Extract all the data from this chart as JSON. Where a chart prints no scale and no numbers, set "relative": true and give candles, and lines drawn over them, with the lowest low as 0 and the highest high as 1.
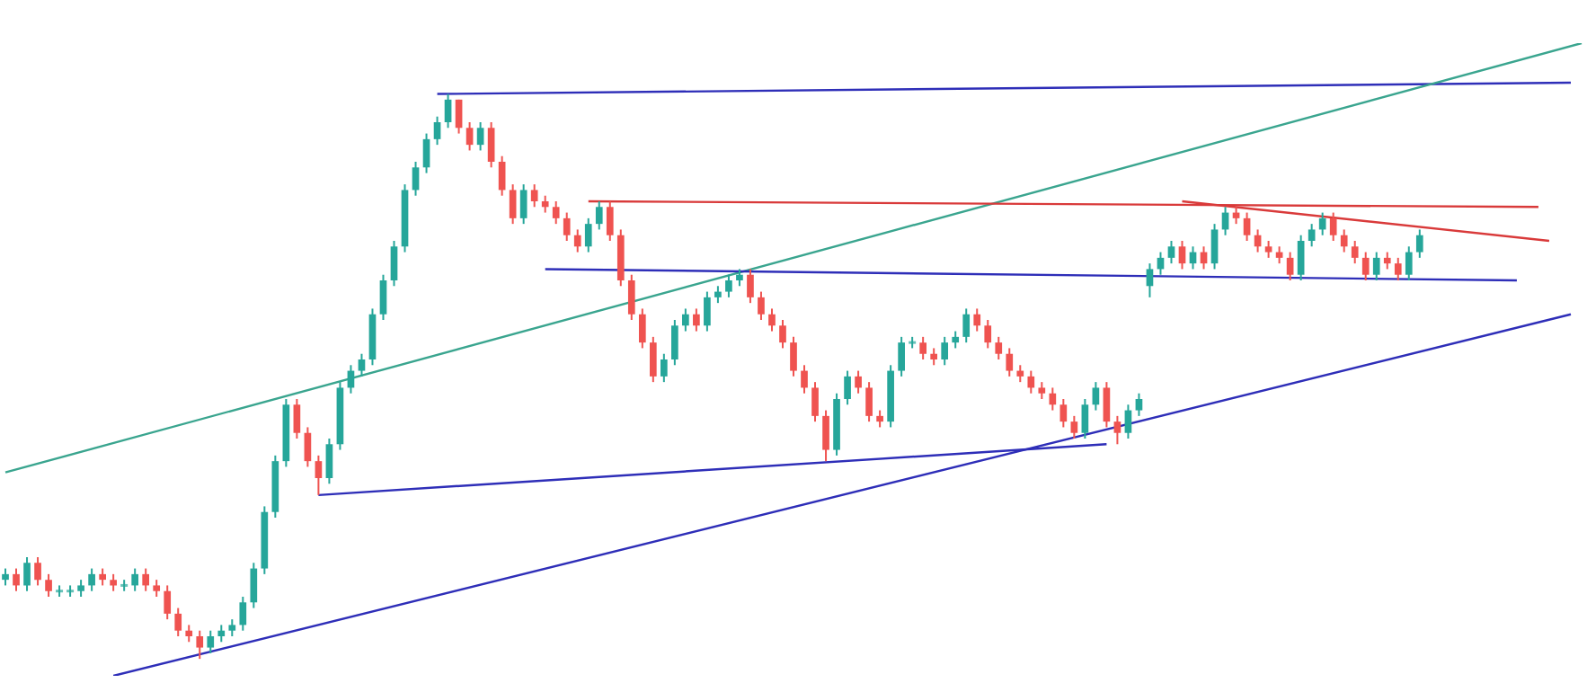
{
  "chart_data": {
    "type": "candlestick",
    "relative": true,
    "categories": [
      null,
      null,
      null,
      null,
      null,
      null,
      null,
      null,
      null,
      null,
      null,
      null,
      null,
      null,
      null,
      null,
      null,
      null,
      null,
      null,
      null,
      null,
      null,
      null,
      null,
      null,
      null,
      null,
      null,
      null,
      null,
      null,
      null,
      null,
      null,
      null,
      null,
      null,
      null,
      null,
      null,
      null,
      null,
      null,
      null,
      null,
      null,
      null,
      null,
      null,
      null,
      null,
      null,
      null,
      null,
      null,
      null,
      null,
      null,
      null,
      null,
      null,
      null,
      null,
      null,
      null,
      null,
      null,
      null,
      null,
      null,
      null,
      null,
      null,
      null,
      null,
      null,
      null,
      null,
      null,
      null,
      null,
      null,
      null,
      null,
      null,
      null,
      null,
      null,
      null,
      null,
      null,
      null,
      null,
      null,
      null,
      null,
      null,
      null,
      null,
      null,
      null,
      null,
      null,
      null,
      null,
      null,
      null,
      null,
      null,
      null,
      null,
      null,
      null,
      null,
      null,
      null,
      null,
      null,
      null,
      null,
      null,
      null,
      null,
      null,
      null,
      null,
      null,
      null,
      null,
      null,
      null,
      null,
      null,
      null,
      null,
      null,
      null,
      null,
      null,
      null,
      null,
      null,
      null,
      null,
      null,
      null
    ],
    "ohlc": [
      [
        0.14,
        0.16,
        0.13,
        0.15
      ],
      [
        0.15,
        0.16,
        0.12,
        0.13
      ],
      [
        0.13,
        0.18,
        0.12,
        0.17
      ],
      [
        0.17,
        0.18,
        0.13,
        0.14
      ],
      [
        0.14,
        0.15,
        0.11,
        0.12
      ],
      [
        0.12,
        0.13,
        0.11,
        0.12
      ],
      [
        0.12,
        0.13,
        0.11,
        0.12
      ],
      [
        0.12,
        0.14,
        0.11,
        0.13
      ],
      [
        0.13,
        0.16,
        0.12,
        0.15
      ],
      [
        0.15,
        0.16,
        0.13,
        0.14
      ],
      [
        0.14,
        0.15,
        0.12,
        0.13
      ],
      [
        0.13,
        0.14,
        0.12,
        0.13
      ],
      [
        0.13,
        0.16,
        0.12,
        0.15
      ],
      [
        0.15,
        0.16,
        0.12,
        0.13
      ],
      [
        0.13,
        0.14,
        0.11,
        0.12
      ],
      [
        0.12,
        0.13,
        0.07,
        0.08
      ],
      [
        0.08,
        0.09,
        0.04,
        0.05
      ],
      [
        0.05,
        0.06,
        0.03,
        0.04
      ],
      [
        0.04,
        0.05,
        0,
        0.02
      ],
      [
        0.02,
        0.05,
        0.01,
        0.04
      ],
      [
        0.04,
        0.06,
        0.03,
        0.05
      ],
      [
        0.05,
        0.07,
        0.04,
        0.06
      ],
      [
        0.06,
        0.11,
        0.05,
        0.1
      ],
      [
        0.1,
        0.17,
        0.09,
        0.16
      ],
      [
        0.16,
        0.27,
        0.15,
        0.26
      ],
      [
        0.26,
        0.36,
        0.25,
        0.35
      ],
      [
        0.35,
        0.46,
        0.34,
        0.45
      ],
      [
        0.45,
        0.46,
        0.39,
        0.4
      ],
      [
        0.4,
        0.41,
        0.34,
        0.35
      ],
      [
        0.35,
        0.36,
        0.29,
        0.32
      ],
      [
        0.32,
        0.39,
        0.31,
        0.38
      ],
      [
        0.38,
        0.49,
        0.37,
        0.48
      ],
      [
        0.48,
        0.52,
        0.47,
        0.51
      ],
      [
        0.51,
        0.54,
        0.5,
        0.53
      ],
      [
        0.53,
        0.62,
        0.52,
        0.61
      ],
      [
        0.61,
        0.68,
        0.6,
        0.67
      ],
      [
        0.67,
        0.74,
        0.66,
        0.73
      ],
      [
        0.73,
        0.84,
        0.72,
        0.83
      ],
      [
        0.83,
        0.88,
        0.82,
        0.87
      ],
      [
        0.87,
        0.93,
        0.86,
        0.92
      ],
      [
        0.92,
        0.96,
        0.91,
        0.95
      ],
      [
        0.95,
        1,
        0.94,
        0.99
      ],
      [
        0.99,
        0.99,
        0.93,
        0.94
      ],
      [
        0.94,
        0.95,
        0.9,
        0.91
      ],
      [
        0.91,
        0.95,
        0.9,
        0.94
      ],
      [
        0.94,
        0.95,
        0.87,
        0.88
      ],
      [
        0.88,
        0.89,
        0.82,
        0.83
      ],
      [
        0.83,
        0.84,
        0.77,
        0.78
      ],
      [
        0.78,
        0.84,
        0.77,
        0.83
      ],
      [
        0.83,
        0.84,
        0.8,
        0.81
      ],
      [
        0.81,
        0.82,
        0.79,
        0.8
      ],
      [
        0.8,
        0.81,
        0.77,
        0.78
      ],
      [
        0.78,
        0.79,
        0.74,
        0.75
      ],
      [
        0.75,
        0.76,
        0.72,
        0.73
      ],
      [
        0.73,
        0.78,
        0.72,
        0.77
      ],
      [
        0.77,
        0.81,
        0.76,
        0.8
      ],
      [
        0.8,
        0.81,
        0.74,
        0.75
      ],
      [
        0.75,
        0.76,
        0.66,
        0.67
      ],
      [
        0.67,
        0.68,
        0.6,
        0.61
      ],
      [
        0.61,
        0.62,
        0.55,
        0.56
      ],
      [
        0.56,
        0.57,
        0.49,
        0.5
      ],
      [
        0.5,
        0.54,
        0.49,
        0.53
      ],
      [
        0.53,
        0.6,
        0.52,
        0.59
      ],
      [
        0.59,
        0.62,
        0.58,
        0.61
      ],
      [
        0.61,
        0.62,
        0.58,
        0.59
      ],
      [
        0.59,
        0.65,
        0.58,
        0.64
      ],
      [
        0.64,
        0.66,
        0.63,
        0.65
      ],
      [
        0.65,
        0.68,
        0.64,
        0.67
      ],
      [
        0.67,
        0.69,
        0.66,
        0.68
      ],
      [
        0.68,
        0.69,
        0.63,
        0.64
      ],
      [
        0.64,
        0.65,
        0.6,
        0.61
      ],
      [
        0.61,
        0.62,
        0.58,
        0.59
      ],
      [
        0.59,
        0.6,
        0.55,
        0.56
      ],
      [
        0.56,
        0.57,
        0.5,
        0.51
      ],
      [
        0.51,
        0.52,
        0.47,
        0.48
      ],
      [
        0.48,
        0.49,
        0.42,
        0.43
      ],
      [
        0.43,
        0.44,
        0.35,
        0.37
      ],
      [
        0.37,
        0.47,
        0.36,
        0.46
      ],
      [
        0.46,
        0.51,
        0.45,
        0.5
      ],
      [
        0.5,
        0.51,
        0.47,
        0.48
      ],
      [
        0.48,
        0.49,
        0.42,
        0.43
      ],
      [
        0.43,
        0.44,
        0.41,
        0.42
      ],
      [
        0.42,
        0.52,
        0.41,
        0.51
      ],
      [
        0.51,
        0.57,
        0.5,
        0.56
      ],
      [
        0.56,
        0.57,
        0.55,
        0.56
      ],
      [
        0.56,
        0.57,
        0.53,
        0.54
      ],
      [
        0.54,
        0.55,
        0.52,
        0.53
      ],
      [
        0.53,
        0.57,
        0.52,
        0.56
      ],
      [
        0.56,
        0.58,
        0.55,
        0.57
      ],
      [
        0.57,
        0.62,
        0.56,
        0.61
      ],
      [
        0.61,
        0.62,
        0.58,
        0.59
      ],
      [
        0.59,
        0.6,
        0.55,
        0.56
      ],
      [
        0.56,
        0.57,
        0.53,
        0.54
      ],
      [
        0.54,
        0.55,
        0.5,
        0.51
      ],
      [
        0.51,
        0.52,
        0.49,
        0.5
      ],
      [
        0.5,
        0.51,
        0.47,
        0.48
      ],
      [
        0.48,
        0.49,
        0.46,
        0.47
      ],
      [
        0.47,
        0.48,
        0.44,
        0.45
      ],
      [
        0.45,
        0.46,
        0.41,
        0.42
      ],
      [
        0.42,
        0.43,
        0.39,
        0.4
      ],
      [
        0.4,
        0.46,
        0.39,
        0.45
      ],
      [
        0.45,
        0.49,
        0.44,
        0.48
      ],
      [
        0.48,
        0.49,
        0.41,
        0.42
      ],
      [
        0.42,
        0.43,
        0.38,
        0.4
      ],
      [
        0.4,
        0.45,
        0.39,
        0.44
      ],
      [
        0.44,
        0.47,
        0.43,
        0.46
      ],
      [
        0.66,
        0.7,
        0.64,
        0.69
      ],
      [
        0.69,
        0.72,
        0.68,
        0.71
      ],
      [
        0.71,
        0.74,
        0.7,
        0.73
      ],
      [
        0.73,
        0.74,
        0.69,
        0.7
      ],
      [
        0.7,
        0.73,
        0.69,
        0.72
      ],
      [
        0.72,
        0.73,
        0.69,
        0.7
      ],
      [
        0.7,
        0.77,
        0.69,
        0.76
      ],
      [
        0.76,
        0.8,
        0.75,
        0.79
      ],
      [
        0.79,
        0.8,
        0.77,
        0.78
      ],
      [
        0.78,
        0.79,
        0.74,
        0.75
      ],
      [
        0.75,
        0.76,
        0.72,
        0.73
      ],
      [
        0.73,
        0.74,
        0.71,
        0.72
      ],
      [
        0.72,
        0.73,
        0.7,
        0.71
      ],
      [
        0.71,
        0.72,
        0.67,
        0.68
      ],
      [
        0.68,
        0.75,
        0.67,
        0.74
      ],
      [
        0.74,
        0.77,
        0.73,
        0.76
      ],
      [
        0.76,
        0.79,
        0.75,
        0.78
      ],
      [
        0.78,
        0.79,
        0.74,
        0.75
      ],
      [
        0.75,
        0.76,
        0.72,
        0.73
      ],
      [
        0.73,
        0.74,
        0.7,
        0.71
      ],
      [
        0.71,
        0.72,
        0.67,
        0.68
      ],
      [
        0.68,
        0.72,
        0.67,
        0.71
      ],
      [
        0.71,
        0.72,
        0.69,
        0.7
      ],
      [
        0.7,
        0.71,
        0.67,
        0.68
      ],
      [
        0.68,
        0.73,
        0.67,
        0.72
      ],
      [
        0.72,
        0.76,
        0.71,
        0.75
      ],
      null,
      null,
      null,
      null,
      null,
      null,
      null,
      null,
      null,
      null,
      null,
      null,
      null,
      null,
      null
    ],
    "series": [
      {
        "type": "line",
        "color": "#2e2eb8",
        "values": [
          null,
          null,
          null,
          null,
          null,
          null,
          null,
          null,
          null,
          null,
          null,
          null,
          null,
          null,
          null,
          null,
          null,
          null,
          null,
          null,
          null,
          null,
          null,
          null,
          null,
          null,
          null,
          null,
          null,
          null,
          null,
          null,
          null,
          null,
          null,
          null,
          null,
          null,
          null,
          null,
          1.0,
          null,
          null,
          null,
          null,
          null,
          null,
          null,
          null,
          null,
          null,
          null,
          null,
          null,
          null,
          null,
          null,
          null,
          null,
          null,
          null,
          null,
          null,
          null,
          null,
          null,
          null,
          null,
          null,
          null,
          null,
          null,
          null,
          null,
          null,
          null,
          null,
          null,
          null,
          null,
          null,
          null,
          null,
          null,
          null,
          null,
          null,
          null,
          null,
          null,
          null,
          null,
          null,
          null,
          null,
          null,
          null,
          null,
          null,
          null,
          null,
          null,
          null,
          null,
          null,
          null,
          null,
          null,
          null,
          null,
          null,
          null,
          null,
          null,
          null,
          null,
          null,
          null,
          null,
          null,
          null,
          null,
          null,
          null,
          null,
          null,
          null,
          null,
          null,
          null,
          null,
          null,
          null,
          null,
          null,
          null,
          null,
          null,
          null,
          null,
          null,
          null,
          null,
          null,
          null,
          1.02,
          null
        ]
      },
      {
        "type": "line",
        "color": "#3aa58f",
        "values": [
          0.33,
          null,
          null,
          null,
          null,
          null,
          null,
          null,
          null,
          null,
          null,
          null,
          null,
          null,
          null,
          null,
          null,
          null,
          null,
          null,
          null,
          null,
          null,
          null,
          null,
          null,
          null,
          null,
          null,
          null,
          null,
          null,
          null,
          null,
          null,
          null,
          null,
          null,
          null,
          null,
          null,
          null,
          null,
          null,
          null,
          null,
          null,
          null,
          null,
          null,
          null,
          null,
          null,
          null,
          null,
          null,
          null,
          null,
          null,
          null,
          null,
          null,
          null,
          null,
          null,
          null,
          null,
          null,
          null,
          null,
          null,
          null,
          null,
          null,
          null,
          null,
          null,
          null,
          null,
          null,
          null,
          null,
          null,
          null,
          null,
          null,
          null,
          null,
          null,
          null,
          null,
          null,
          null,
          null,
          null,
          null,
          null,
          null,
          null,
          null,
          null,
          null,
          null,
          null,
          null,
          null,
          null,
          null,
          null,
          null,
          null,
          null,
          null,
          null,
          null,
          null,
          null,
          null,
          null,
          null,
          null,
          null,
          null,
          null,
          null,
          null,
          null,
          null,
          null,
          null,
          null,
          null,
          null,
          null,
          null,
          null,
          null,
          null,
          null,
          null,
          null,
          null,
          null,
          null,
          null,
          null,
          1.09
        ]
      },
      {
        "type": "line",
        "color": "#d93a3a",
        "values": [
          null,
          null,
          null,
          null,
          null,
          null,
          null,
          null,
          null,
          null,
          null,
          null,
          null,
          null,
          null,
          null,
          null,
          null,
          null,
          null,
          null,
          null,
          null,
          null,
          null,
          null,
          null,
          null,
          null,
          null,
          null,
          null,
          null,
          null,
          null,
          null,
          null,
          null,
          null,
          null,
          null,
          null,
          null,
          null,
          null,
          null,
          null,
          null,
          null,
          null,
          null,
          null,
          null,
          null,
          0.81,
          null,
          null,
          null,
          null,
          null,
          null,
          null,
          null,
          null,
          null,
          null,
          null,
          null,
          null,
          null,
          null,
          null,
          null,
          null,
          null,
          null,
          null,
          null,
          null,
          null,
          null,
          null,
          null,
          null,
          null,
          null,
          null,
          null,
          null,
          null,
          null,
          null,
          null,
          null,
          null,
          null,
          null,
          null,
          null,
          null,
          null,
          null,
          null,
          null,
          null,
          null,
          null,
          null,
          null,
          null,
          null,
          null,
          null,
          null,
          null,
          null,
          null,
          null,
          null,
          null,
          null,
          null,
          null,
          null,
          null,
          null,
          null,
          null,
          null,
          null,
          null,
          null,
          null,
          null,
          null,
          null,
          null,
          null,
          null,
          null,
          null,
          null,
          0.8,
          null,
          null,
          null,
          null
        ]
      },
      {
        "type": "line",
        "color": "#2e2eb8",
        "values": [
          null,
          null,
          null,
          null,
          null,
          null,
          null,
          null,
          null,
          null,
          null,
          null,
          null,
          null,
          null,
          null,
          null,
          null,
          null,
          null,
          null,
          null,
          null,
          null,
          null,
          null,
          null,
          null,
          null,
          null,
          null,
          null,
          null,
          null,
          null,
          null,
          null,
          null,
          null,
          null,
          null,
          null,
          null,
          null,
          null,
          null,
          null,
          null,
          null,
          null,
          0.69,
          null,
          null,
          null,
          null,
          null,
          null,
          null,
          null,
          null,
          null,
          null,
          null,
          null,
          null,
          null,
          null,
          null,
          null,
          null,
          null,
          null,
          null,
          null,
          null,
          null,
          null,
          null,
          null,
          null,
          null,
          null,
          null,
          null,
          null,
          null,
          null,
          null,
          null,
          null,
          null,
          null,
          null,
          null,
          null,
          null,
          null,
          null,
          null,
          null,
          null,
          null,
          null,
          null,
          null,
          null,
          null,
          null,
          null,
          null,
          null,
          null,
          null,
          null,
          null,
          null,
          null,
          null,
          null,
          null,
          null,
          null,
          null,
          null,
          null,
          null,
          null,
          null,
          null,
          null,
          null,
          null,
          null,
          null,
          null,
          null,
          null,
          null,
          null,
          null,
          0.67,
          null,
          null,
          null,
          null,
          null,
          null
        ]
      },
      {
        "type": "line",
        "color": "#d93a3a",
        "values": [
          null,
          null,
          null,
          null,
          null,
          null,
          null,
          null,
          null,
          null,
          null,
          null,
          null,
          null,
          null,
          null,
          null,
          null,
          null,
          null,
          null,
          null,
          null,
          null,
          null,
          null,
          null,
          null,
          null,
          null,
          null,
          null,
          null,
          null,
          null,
          null,
          null,
          null,
          null,
          null,
          null,
          null,
          null,
          null,
          null,
          null,
          null,
          null,
          null,
          null,
          null,
          null,
          null,
          null,
          null,
          null,
          null,
          null,
          null,
          null,
          null,
          null,
          null,
          null,
          null,
          null,
          null,
          null,
          null,
          null,
          null,
          null,
          null,
          null,
          null,
          null,
          null,
          null,
          null,
          null,
          null,
          null,
          null,
          null,
          null,
          null,
          null,
          null,
          null,
          null,
          null,
          null,
          null,
          null,
          null,
          null,
          null,
          null,
          null,
          null,
          null,
          null,
          null,
          null,
          null,
          null,
          null,
          null,
          null,
          0.81,
          null,
          null,
          null,
          null,
          null,
          null,
          null,
          null,
          null,
          null,
          null,
          null,
          null,
          null,
          null,
          null,
          null,
          null,
          null,
          null,
          null,
          null,
          null,
          null,
          null,
          null,
          null,
          null,
          null,
          null,
          null,
          null,
          null,
          0.74,
          null,
          null,
          null
        ]
      },
      {
        "type": "line",
        "color": "#2e2eb8",
        "values": [
          null,
          null,
          null,
          null,
          null,
          null,
          null,
          null,
          null,
          null,
          null,
          null,
          null,
          null,
          null,
          null,
          null,
          null,
          null,
          null,
          null,
          null,
          null,
          null,
          null,
          null,
          null,
          null,
          null,
          0.29,
          null,
          null,
          null,
          null,
          null,
          null,
          null,
          null,
          null,
          null,
          null,
          null,
          null,
          null,
          null,
          null,
          null,
          null,
          null,
          null,
          null,
          null,
          null,
          null,
          null,
          null,
          null,
          null,
          null,
          null,
          null,
          null,
          null,
          null,
          null,
          null,
          null,
          null,
          null,
          null,
          null,
          null,
          null,
          null,
          null,
          null,
          null,
          null,
          null,
          null,
          null,
          null,
          null,
          null,
          null,
          null,
          null,
          null,
          null,
          null,
          null,
          null,
          null,
          null,
          null,
          null,
          null,
          null,
          null,
          null,
          null,
          null,
          0.38,
          null,
          null,
          null,
          null,
          null,
          null,
          null,
          null,
          null,
          null,
          null,
          null,
          null,
          null,
          null,
          null,
          null,
          null,
          null,
          null,
          null,
          null,
          null,
          null,
          null,
          null,
          null,
          null,
          null,
          null,
          null,
          null,
          null,
          null,
          null,
          null,
          null,
          null,
          null,
          null,
          null,
          null,
          null,
          null
        ]
      },
      {
        "type": "line",
        "color": "#2e2eb8",
        "values": [
          null,
          null,
          null,
          null,
          null,
          null,
          null,
          null,
          null,
          null,
          -0.03,
          null,
          null,
          null,
          null,
          null,
          null,
          null,
          null,
          null,
          null,
          null,
          null,
          null,
          null,
          null,
          null,
          null,
          null,
          null,
          null,
          null,
          null,
          null,
          null,
          null,
          null,
          null,
          null,
          null,
          null,
          null,
          null,
          null,
          null,
          null,
          null,
          null,
          null,
          null,
          null,
          null,
          null,
          null,
          null,
          null,
          null,
          null,
          null,
          null,
          null,
          null,
          null,
          null,
          null,
          null,
          null,
          null,
          null,
          null,
          null,
          null,
          null,
          null,
          null,
          null,
          null,
          null,
          null,
          null,
          null,
          null,
          null,
          null,
          null,
          null,
          null,
          null,
          null,
          null,
          null,
          null,
          null,
          null,
          null,
          null,
          null,
          null,
          null,
          null,
          null,
          null,
          null,
          null,
          null,
          null,
          null,
          null,
          null,
          null,
          null,
          null,
          null,
          null,
          null,
          null,
          null,
          null,
          null,
          null,
          null,
          null,
          null,
          null,
          null,
          null,
          null,
          null,
          null,
          null,
          null,
          null,
          null,
          null,
          null,
          null,
          null,
          null,
          null,
          null,
          null,
          null,
          null,
          null,
          null,
          0.61,
          null
        ]
      }
    ]
  }
}
